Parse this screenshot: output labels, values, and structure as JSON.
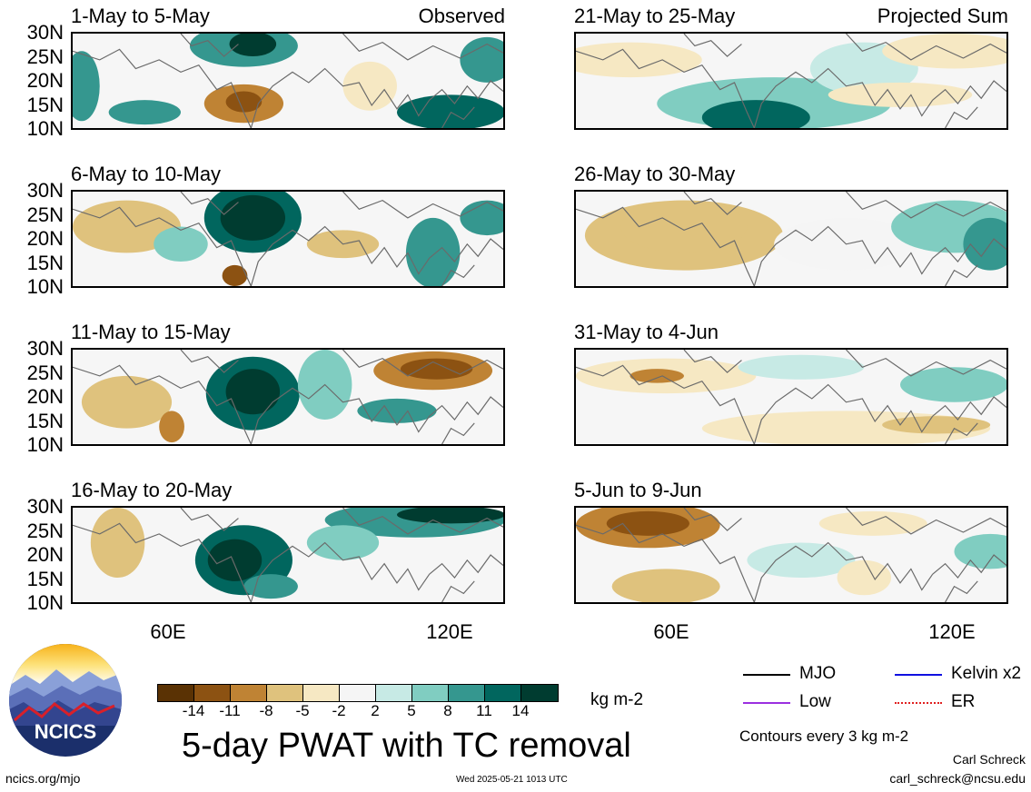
{
  "panels": [
    {
      "id": "p1",
      "title": "1-May to 5-May",
      "corner": "Observed"
    },
    {
      "id": "p2",
      "title": "6-May to 10-May",
      "corner": ""
    },
    {
      "id": "p3",
      "title": "11-May to 15-May",
      "corner": ""
    },
    {
      "id": "p4",
      "title": "16-May to 20-May",
      "corner": ""
    },
    {
      "id": "p5",
      "title": "21-May to 25-May",
      "corner": "Projected Sum"
    },
    {
      "id": "p6",
      "title": "26-May to 30-May",
      "corner": ""
    },
    {
      "id": "p7",
      "title": "31-May to 4-Jun",
      "corner": ""
    },
    {
      "id": "p8",
      "title": "5-Jun to 9-Jun",
      "corner": ""
    }
  ],
  "axis": {
    "y_ticks": [
      "30N",
      "25N",
      "20N",
      "15N",
      "10N"
    ],
    "x_ticks": [
      "60E",
      "120E"
    ]
  },
  "colorbar": {
    "colors": [
      "#5a3204",
      "#8c5212",
      "#bf8334",
      "#dfc27d",
      "#f6e8c3",
      "#f5f5f5",
      "#c7eae5",
      "#80cdc1",
      "#35978f",
      "#01665e",
      "#003c30"
    ],
    "labels": [
      "-14",
      "-11",
      "-8",
      "-5",
      "-2",
      "2",
      "5",
      "8",
      "11",
      "14"
    ],
    "units": "kg m-2"
  },
  "title": "5-day PWAT with TC removal",
  "legend": [
    {
      "label": "MJO",
      "color": "#000000",
      "style": "solid"
    },
    {
      "label": "Kelvin x2",
      "color": "#1010e0",
      "style": "solid"
    },
    {
      "label": "Low",
      "color": "#9b30e0",
      "style": "solid"
    },
    {
      "label": "ER",
      "color": "#e02020",
      "style": "dotted"
    }
  ],
  "contour_note": "Contours every 3 kg m-2",
  "author": "Carl Schreck",
  "email": "carl_schreck@ncsu.edu",
  "site": "ncics.org/mjo",
  "timestamp": "Wed 2025-05-21 1013 UTC",
  "logo_text": "NCICS"
}
